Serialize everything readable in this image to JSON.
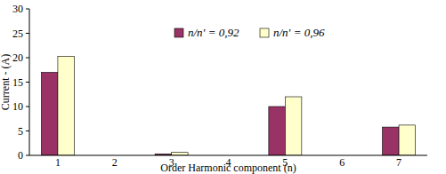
{
  "chart_data": {
    "type": "bar",
    "x_label": "Order Harmonic component (n)",
    "y_label": "Current - (A)",
    "categories": [
      "1",
      "2",
      "3",
      "4",
      "5",
      "6",
      "7"
    ],
    "series": [
      {
        "name": "n/n' = 0,92",
        "color": "#993366",
        "values": [
          17,
          0,
          0.3,
          0,
          10,
          0,
          5.8
        ]
      },
      {
        "name": "n/n' = 0,96",
        "color": "#ffffcc",
        "values": [
          20.3,
          0,
          0.6,
          0,
          12,
          0,
          6.2
        ]
      }
    ],
    "ylim": [
      0,
      30
    ],
    "yticks": [
      0,
      5,
      10,
      15,
      20,
      25,
      30
    ],
    "grid": false,
    "legend": "top"
  }
}
